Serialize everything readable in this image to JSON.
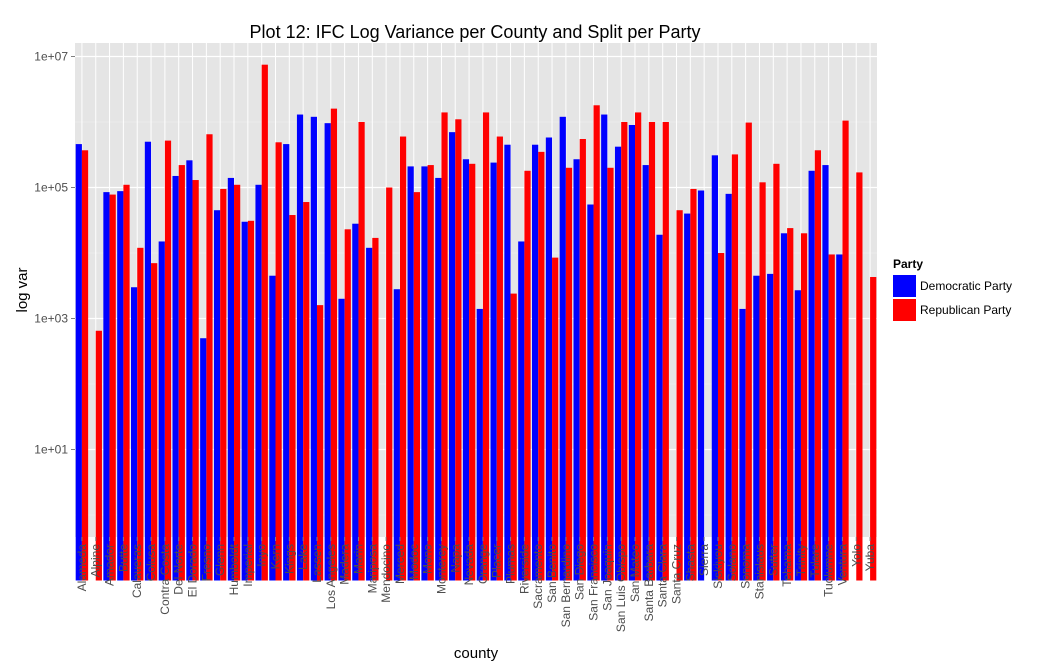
{
  "chart_data": {
    "type": "bar",
    "title": "Plot 12: IFC Log Variance per County and Split per Party",
    "xlabel": "county",
    "ylabel": "log var",
    "y_scale": "log10",
    "ylim": [
      0.1,
      20000000
    ],
    "yticks": [
      10,
      1000,
      100000,
      10000000
    ],
    "ytick_labels": [
      "1e+01",
      "1e+03",
      "1e+05",
      "1e+07"
    ],
    "grid": true,
    "legend": {
      "title": "Party",
      "position": "right"
    },
    "categories": [
      "Alameda",
      "Alpine",
      "Amador",
      "Butte",
      "Calaveras",
      "Colusa",
      "Contra Costa",
      "Del Norte",
      "El Dorado",
      "Fresno",
      "Glenn",
      "Humboldt",
      "Imperial",
      "Inyo",
      "Kern",
      "Kings",
      "Lake",
      "Lassen",
      "Los Angeles",
      "Madera",
      "Marin",
      "Mariposa",
      "Mendocino",
      "Merced",
      "Modoc",
      "Mono",
      "Monterey",
      "Napa",
      "Nevada",
      "Orange",
      "Placer",
      "Plumas",
      "Riverside",
      "Sacramento",
      "San Benito",
      "San Bernardino",
      "San Diego",
      "San Francisco",
      "San Joaquin",
      "San Luis Obispo",
      "San Mateo",
      "Santa Barbara",
      "Santa Clara",
      "Santa Cruz",
      "Shasta",
      "Sierra",
      "Siskiyou",
      "Solano",
      "Sonoma",
      "Stanislaus",
      "Sutter",
      "Tehama",
      "Trinity",
      "Tulare",
      "Tuolumne",
      "Ventura",
      "Yolo",
      "Yuba"
    ],
    "series": [
      {
        "name": "Democratic Party",
        "color": "#0000ff",
        "values": [
          460000,
          null,
          85000,
          88000,
          3000,
          500000,
          15000,
          150000,
          260000,
          500,
          45000,
          140000,
          30000,
          110000,
          4500,
          460000,
          1300000,
          1200000,
          960000,
          2000,
          28000,
          12000,
          null,
          2800,
          210000,
          210000,
          140000,
          700000,
          270000,
          1400,
          240000,
          450000,
          15000,
          450000,
          580000,
          1200000,
          270000,
          55000,
          1300000,
          420000,
          900000,
          220000,
          19000,
          null,
          40000,
          90000,
          310000,
          80000,
          1400,
          4500,
          4800,
          20000,
          2700,
          180000,
          220000,
          9500,
          null,
          null
        ]
      },
      {
        "name": "Republican Party",
        "color": "#ff0000",
        "values": [
          370000,
          650,
          78000,
          110000,
          12000,
          7000,
          520000,
          220000,
          130000,
          650000,
          95000,
          110000,
          31000,
          7500000,
          490000,
          38000,
          60000,
          1600,
          1600000,
          23000,
          1000000,
          17000,
          100000,
          600000,
          85000,
          220000,
          1400000,
          1100000,
          230000,
          1400000,
          600000,
          2400,
          180000,
          350000,
          8500,
          200000,
          550000,
          1800000,
          200000,
          1000000,
          1400000,
          1000000,
          1000000,
          45000,
          95000,
          null,
          10000,
          320000,
          980000,
          120000,
          230000,
          24000,
          20000,
          370000,
          9500,
          1050000,
          170000,
          4300
        ]
      }
    ]
  }
}
